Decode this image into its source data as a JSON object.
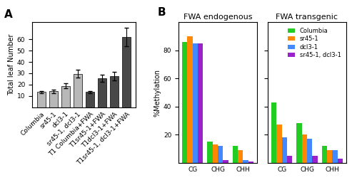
{
  "chart_data": [
    {
      "type": "bar",
      "annotations": [
        "A"
      ],
      "categories": [
        "Columbia",
        "sr45-1",
        "dcl3-1",
        "sr45-1, dcl3-1",
        "T1 Columbia+FWA",
        "T1sr45-1+FWA",
        "T1dcl3-1+FWA",
        "T1sr45-1, dcl3-1+FWA"
      ],
      "values": [
        13.5,
        14.0,
        19.0,
        29.5,
        13.5,
        25.5,
        27.5,
        62.0
      ],
      "errors": [
        1.0,
        1.5,
        2.5,
        3.5,
        1.0,
        3.0,
        3.5,
        8.0
      ],
      "colors": [
        "#b8b8b8",
        "#b8b8b8",
        "#b8b8b8",
        "#b8b8b8",
        "#484848",
        "#484848",
        "#484848",
        "#484848"
      ],
      "ylabel": "Total leaf Number",
      "ylim": [
        0,
        75
      ],
      "yticks": [
        10,
        20,
        30,
        40,
        50,
        60
      ]
    },
    {
      "type": "bar",
      "title": "FWA endogenous",
      "annotations": [
        "B"
      ],
      "categories": [
        "CG",
        "CHG",
        "CHH"
      ],
      "series": [
        {
          "name": "Columbia",
          "color": "#22cc22",
          "values": [
            86,
            15,
            12
          ]
        },
        {
          "name": "sr45-1",
          "color": "#ff8800",
          "values": [
            90,
            13,
            9
          ]
        },
        {
          "name": "dcl3-1",
          "color": "#4488ff",
          "values": [
            85,
            12,
            2
          ]
        },
        {
          "name": "sr45-1, dcl3-1",
          "color": "#9922cc",
          "values": [
            85,
            2,
            1
          ]
        }
      ],
      "ylabel": "%Methylation",
      "ylim": [
        0,
        100
      ],
      "yticks": [
        20,
        40,
        60,
        80
      ]
    },
    {
      "type": "bar",
      "title": "FWA transgenic",
      "categories": [
        "CG",
        "CHG",
        "CHH"
      ],
      "series": [
        {
          "name": "Columbia",
          "color": "#22cc22",
          "values": [
            43,
            28,
            12
          ]
        },
        {
          "name": "sr45-1",
          "color": "#ff8800",
          "values": [
            27,
            20,
            9
          ]
        },
        {
          "name": "dcl3-1",
          "color": "#4488ff",
          "values": [
            18,
            17,
            9
          ]
        },
        {
          "name": "sr45-1, dcl3-1",
          "color": "#9922cc",
          "values": [
            5,
            5,
            3
          ]
        }
      ],
      "ylim": [
        0,
        100
      ],
      "yticks": [
        20,
        40,
        60,
        80
      ],
      "tick_labels": "x",
      "legend": "upper right"
    }
  ]
}
